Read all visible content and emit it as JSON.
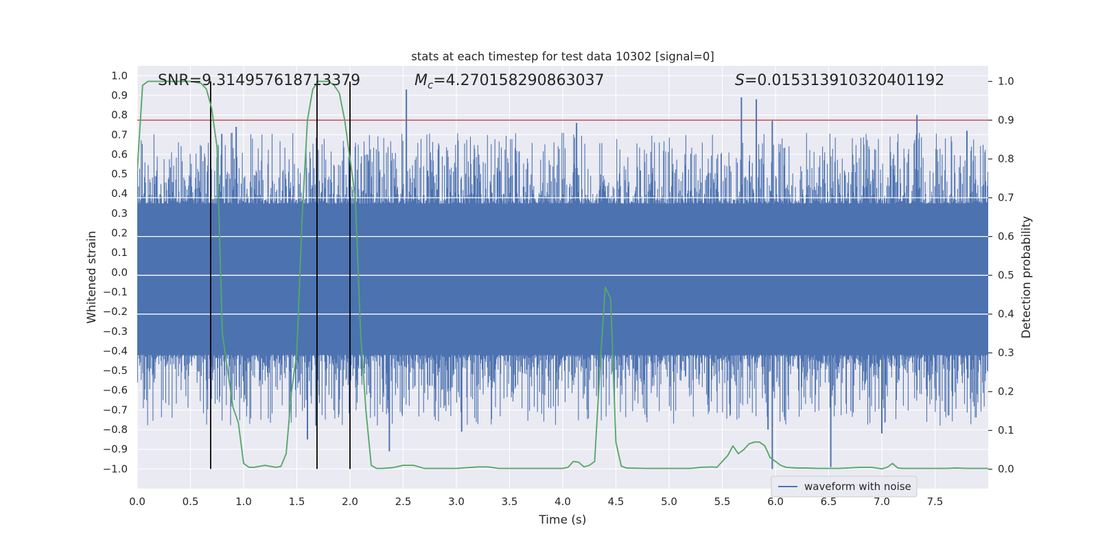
{
  "chart_data": {
    "type": "line",
    "title": "stats at each timestep for test data 10302 [signal=0]",
    "xlabel": "Time (s)",
    "ylabel": "Whitened strain",
    "ylabel_right": "Detection probability",
    "xlim": [
      0,
      8
    ],
    "ylim": [
      -1.1,
      1.05
    ],
    "ylim_right": [
      -0.05,
      1.04
    ],
    "x_ticks": [
      "0.0",
      "0.5",
      "1.0",
      "1.5",
      "2.0",
      "2.5",
      "3.0",
      "3.5",
      "4.0",
      "4.5",
      "5.0",
      "5.5",
      "6.0",
      "6.5",
      "7.0",
      "7.5"
    ],
    "y_ticks": [
      "1.0",
      "0.9",
      "0.8",
      "0.7",
      "0.6",
      "0.5",
      "0.4",
      "0.3",
      "0.2",
      "0.1",
      "0.0",
      "-0.1",
      "-0.2",
      "-0.3",
      "-0.4",
      "-0.5",
      "-0.6",
      "-0.7",
      "-0.8",
      "-0.9",
      "-1.0"
    ],
    "y_ticks_right": [
      "1.0",
      "0.9",
      "0.8",
      "0.7",
      "0.6",
      "0.5",
      "0.4",
      "0.3",
      "0.2",
      "0.1",
      "0.0"
    ],
    "annotations": {
      "snr": "SNR=9.314957618713379",
      "mc_symbol": "M",
      "mc_sub": "c",
      "mc_value": "=4.270158290863037",
      "s_symbol": "S",
      "s_value": "=0.015313910320401192"
    },
    "threshold_probability": 0.9,
    "detection_markers_time": [
      0.69,
      1.69,
      2.0
    ],
    "series": [
      {
        "name": "waveform with noise",
        "axis": "left",
        "color": "#4c72b0",
        "description": "noise-like whitened strain, core band about -0.42 to 0.35",
        "band": [
          -0.42,
          0.35
        ],
        "peaks_top": [
          {
            "t": 2.53,
            "v": 0.93
          },
          {
            "t": 5.68,
            "v": 0.89
          },
          {
            "t": 5.82,
            "v": 0.88
          },
          {
            "t": 0.93,
            "v": 0.74
          },
          {
            "t": 4.13,
            "v": 0.76
          },
          {
            "t": 7.33,
            "v": 0.8
          },
          {
            "t": 5.97,
            "v": 0.77
          },
          {
            "t": 7.8,
            "v": 0.72
          }
        ],
        "peaks_bottom": [
          {
            "t": 5.97,
            "v": -1.0
          },
          {
            "t": 6.52,
            "v": -0.99
          },
          {
            "t": 5.93,
            "v": -0.8
          },
          {
            "t": 2.37,
            "v": -0.91
          },
          {
            "t": 1.6,
            "v": -0.85
          },
          {
            "t": 1.68,
            "v": -0.78
          },
          {
            "t": 3.05,
            "v": -0.81
          },
          {
            "t": 7.0,
            "v": -0.82
          }
        ]
      },
      {
        "name": "detection probability",
        "axis": "right",
        "color": "#55a868",
        "x": [
          0.0,
          0.05,
          0.1,
          0.2,
          0.3,
          0.4,
          0.5,
          0.6,
          0.65,
          0.7,
          0.75,
          0.8,
          0.9,
          0.95,
          1.0,
          1.05,
          1.1,
          1.2,
          1.3,
          1.35,
          1.4,
          1.45,
          1.5,
          1.55,
          1.6,
          1.65,
          1.7,
          1.75,
          1.8,
          1.85,
          1.9,
          1.95,
          2.0,
          2.05,
          2.1,
          2.15,
          2.2,
          2.25,
          2.3,
          2.4,
          2.5,
          2.6,
          2.7,
          2.8,
          3.0,
          3.2,
          3.3,
          3.4,
          3.6,
          3.8,
          4.0,
          4.05,
          4.1,
          4.15,
          4.2,
          4.25,
          4.3,
          4.35,
          4.4,
          4.45,
          4.5,
          4.55,
          4.6,
          4.8,
          5.0,
          5.2,
          5.3,
          5.4,
          5.45,
          5.5,
          5.55,
          5.6,
          5.65,
          5.7,
          5.75,
          5.8,
          5.85,
          5.9,
          5.95,
          6.0,
          6.05,
          6.1,
          6.2,
          6.3,
          6.4,
          6.6,
          6.8,
          6.9,
          7.0,
          7.05,
          7.1,
          7.15,
          7.2,
          7.4,
          7.6,
          7.7,
          7.8,
          7.9,
          8.0
        ],
        "y": [
          0.77,
          0.99,
          1.0,
          1.0,
          1.0,
          1.0,
          1.0,
          0.995,
          0.98,
          0.93,
          0.83,
          0.35,
          0.16,
          0.12,
          0.015,
          0.005,
          0.005,
          0.01,
          0.005,
          0.007,
          0.04,
          0.2,
          0.3,
          0.65,
          0.9,
          0.98,
          1.0,
          1.0,
          1.0,
          0.99,
          0.97,
          0.9,
          0.8,
          0.7,
          0.35,
          0.15,
          0.01,
          0.002,
          0.002,
          0.004,
          0.01,
          0.01,
          0.002,
          0.002,
          0.002,
          0.006,
          0.006,
          0.002,
          0.002,
          0.002,
          0.002,
          0.005,
          0.02,
          0.018,
          0.006,
          0.01,
          0.02,
          0.26,
          0.47,
          0.44,
          0.07,
          0.008,
          0.003,
          0.002,
          0.002,
          0.002,
          0.005,
          0.006,
          0.005,
          0.02,
          0.035,
          0.06,
          0.04,
          0.05,
          0.065,
          0.07,
          0.07,
          0.06,
          0.03,
          0.02,
          0.01,
          0.005,
          0.003,
          0.003,
          0.002,
          0.002,
          0.005,
          0.005,
          0.001,
          0.005,
          0.015,
          0.003,
          0.002,
          0.002,
          0.002,
          0.003,
          0.002,
          0.002,
          0.002
        ]
      }
    ],
    "legend": {
      "position": "lower-right",
      "entries": [
        "waveform with noise"
      ]
    },
    "grid": true
  }
}
